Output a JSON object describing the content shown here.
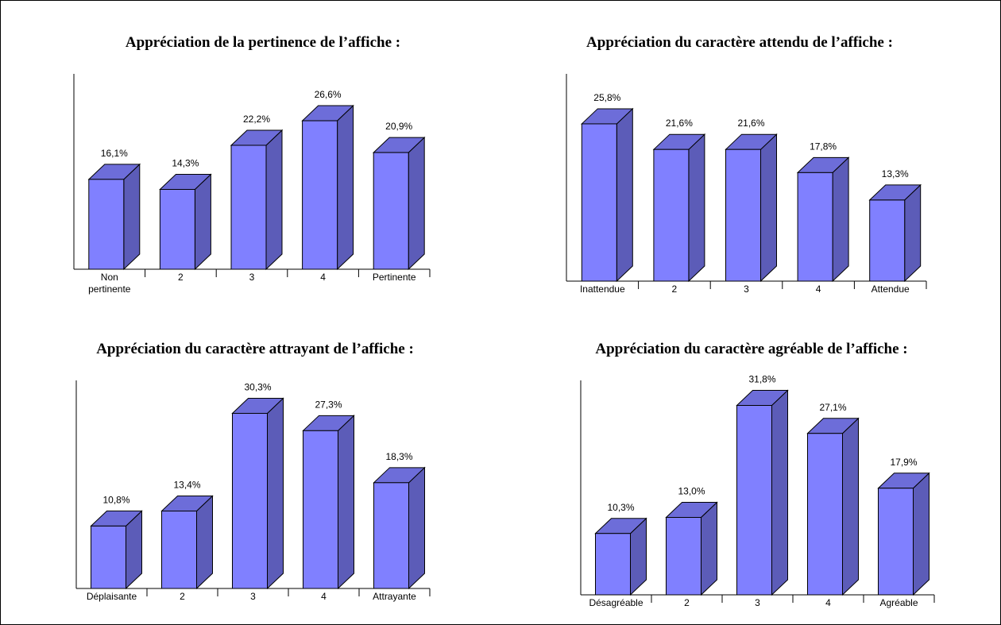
{
  "chart_data": [
    {
      "type": "bar",
      "title": "Appréciation de la pertinence de l’affiche :",
      "categories": [
        "Non pertinente",
        "2",
        "3",
        "4",
        "Pertinente"
      ],
      "values": [
        16.1,
        14.3,
        22.2,
        26.6,
        20.9
      ],
      "value_labels": [
        "16,1%",
        "14,3%",
        "22,2%",
        "26,6%",
        "20,9%"
      ],
      "color": "#8080ff",
      "ylim": [
        0,
        35
      ]
    },
    {
      "type": "bar",
      "title": "Appréciation du caractère attendu de l’affiche :",
      "categories": [
        "Inattendue",
        "2",
        "3",
        "4",
        "Attendue"
      ],
      "values": [
        25.8,
        21.6,
        21.6,
        17.8,
        13.3
      ],
      "value_labels": [
        "25,8%",
        "21,6%",
        "21,6%",
        "17,8%",
        "13,3%"
      ],
      "color": "#8080ff",
      "ylim": [
        0,
        34
      ]
    },
    {
      "type": "bar",
      "title": "Appréciation du caractère attrayant de l’affiche :",
      "categories": [
        "Déplaisante",
        "2",
        "3",
        "4",
        "Attrayante"
      ],
      "values": [
        10.8,
        13.4,
        30.3,
        27.3,
        18.3
      ],
      "value_labels": [
        "10,8%",
        "13,4%",
        "30,3%",
        "27,3%",
        "18,3%"
      ],
      "color": "#8080ff",
      "ylim": [
        0,
        36
      ]
    },
    {
      "type": "bar",
      "title": "Appréciation du caractère agréable de l’affiche :",
      "categories": [
        "Désagréable",
        "2",
        "3",
        "4",
        "Agréable"
      ],
      "values": [
        10.3,
        13.0,
        31.8,
        27.1,
        17.9
      ],
      "value_labels": [
        "10,3%",
        "13,0%",
        "31,8%",
        "27,1%",
        "17,9%"
      ],
      "color": "#8080ff",
      "ylim": [
        0,
        36
      ]
    }
  ]
}
